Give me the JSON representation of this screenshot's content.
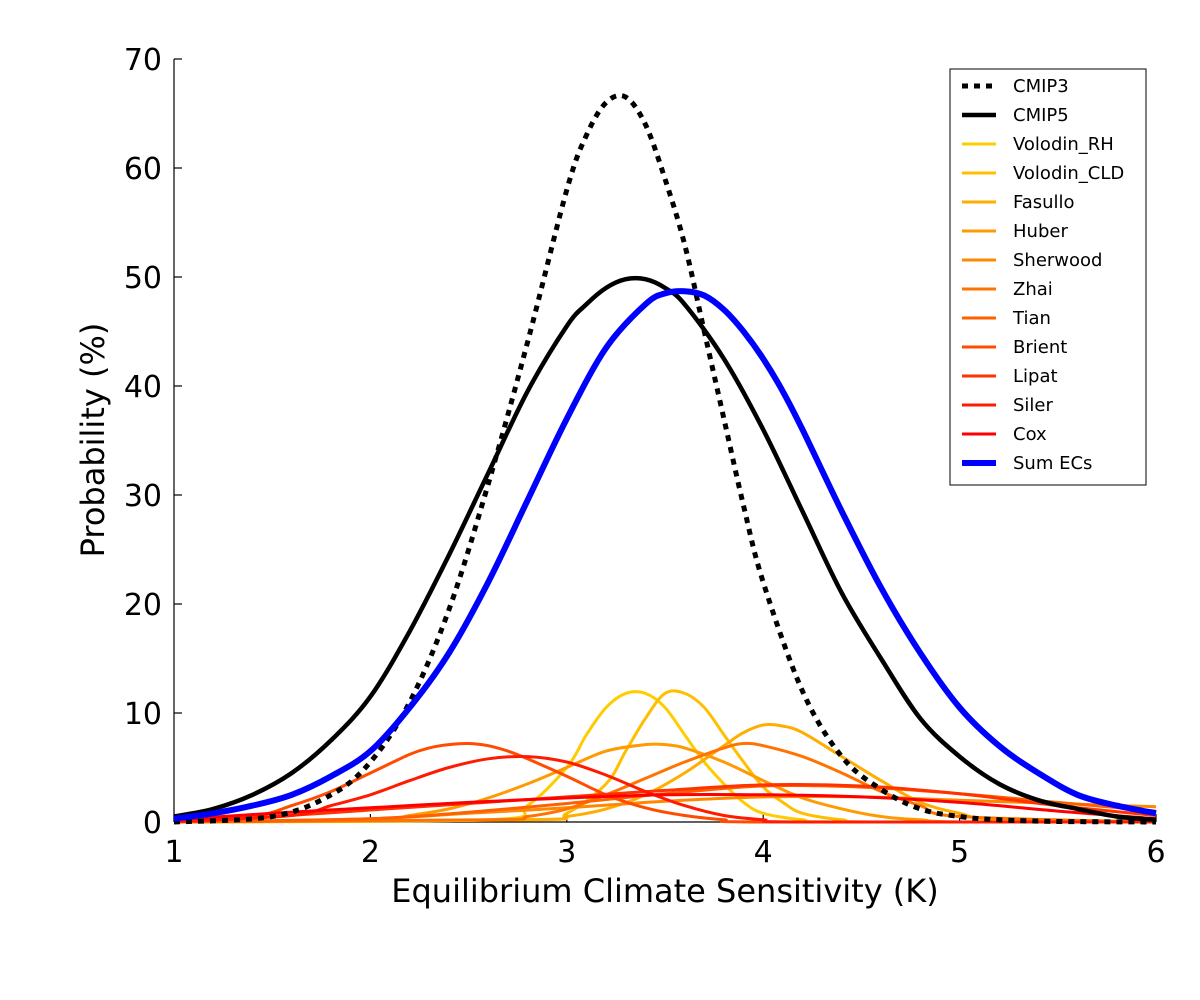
{
  "chart_data": {
    "type": "line",
    "xlabel": "Equilibrium Climate Sensitivity (K)",
    "ylabel": "Probability (%)",
    "xlim": [
      1,
      6
    ],
    "ylim": [
      0,
      70
    ],
    "xticks": [
      "1",
      "2",
      "3",
      "4",
      "5",
      "6"
    ],
    "yticks": [
      "0",
      "10",
      "20",
      "30",
      "40",
      "50",
      "60",
      "70"
    ],
    "grid": false,
    "legend_position": "top-right",
    "series": [
      {
        "name": "CMIP3",
        "color": "#000000",
        "style": "dotted",
        "x": [
          1.0,
          1.5,
          1.8,
          2.0,
          2.2,
          2.4,
          2.6,
          2.8,
          3.0,
          3.1,
          3.2,
          3.3,
          3.4,
          3.5,
          3.6,
          3.7,
          3.8,
          3.9,
          4.0,
          4.2,
          4.4,
          4.6,
          4.8,
          5.0,
          5.2,
          5.5,
          6.0
        ],
        "y": [
          0.0,
          0.5,
          2.5,
          5.5,
          11,
          19.5,
          31,
          44,
          58,
          63,
          66,
          66.5,
          64,
          59,
          53,
          45,
          37,
          29,
          22,
          12,
          6,
          3,
          1.2,
          0.5,
          0.2,
          0.05,
          0.0
        ]
      },
      {
        "name": "CMIP5",
        "color": "#000000",
        "style": "solid",
        "x": [
          1.0,
          1.2,
          1.4,
          1.6,
          1.8,
          2.0,
          2.2,
          2.4,
          2.6,
          2.8,
          3.0,
          3.1,
          3.2,
          3.3,
          3.4,
          3.5,
          3.6,
          3.8,
          4.0,
          4.2,
          4.4,
          4.6,
          4.8,
          5.0,
          5.2,
          5.4,
          5.6,
          5.8,
          6.0
        ],
        "y": [
          0.5,
          1.2,
          2.5,
          4.5,
          7.5,
          11.5,
          17.5,
          24.5,
          32,
          39.5,
          45.5,
          47.5,
          49,
          49.8,
          49.8,
          49,
          47.5,
          42.5,
          36,
          28.5,
          21,
          15,
          9.5,
          6,
          3.5,
          2,
          1.2,
          0.5,
          0.2
        ]
      },
      {
        "name": "Volodin_RH",
        "color": "#ffcc00",
        "style": "solid",
        "x": [
          1.0,
          2.6,
          2.8,
          3.0,
          3.1,
          3.2,
          3.3,
          3.4,
          3.5,
          3.6,
          3.7,
          3.8,
          3.9,
          4.0,
          4.2,
          4.4,
          6.0
        ],
        "y": [
          0.0,
          0.2,
          1.5,
          5,
          8,
          10.5,
          11.8,
          11.8,
          10.5,
          8,
          5.5,
          3.5,
          1.8,
          0.8,
          0.2,
          0.0,
          0.0
        ]
      },
      {
        "name": "Volodin_CLD",
        "color": "#ffbf00",
        "style": "solid",
        "x": [
          1.0,
          2.8,
          3.0,
          3.2,
          3.3,
          3.4,
          3.5,
          3.6,
          3.7,
          3.8,
          3.9,
          4.0,
          4.1,
          4.2,
          4.4,
          4.6,
          6.0
        ],
        "y": [
          0.0,
          0.2,
          0.8,
          3.5,
          6.5,
          9.5,
          11.8,
          11.8,
          10.5,
          8,
          5.5,
          3.2,
          1.8,
          0.8,
          0.2,
          0.0,
          0.0
        ]
      },
      {
        "name": "Fasullo",
        "color": "#ffad00",
        "style": "solid",
        "x": [
          1.0,
          2.8,
          3.0,
          3.2,
          3.4,
          3.6,
          3.8,
          3.9,
          4.0,
          4.1,
          4.2,
          4.4,
          4.6,
          4.8,
          5.0,
          5.2,
          6.0
        ],
        "y": [
          0.0,
          0.2,
          0.5,
          1.2,
          2.5,
          4.5,
          7,
          8.2,
          8.9,
          8.8,
          8.2,
          6,
          3.8,
          1.8,
          0.8,
          0.2,
          0.0
        ]
      },
      {
        "name": "Huber",
        "color": "#ff9a00",
        "style": "solid",
        "x": [
          1.0,
          2.0,
          2.2,
          2.4,
          2.6,
          2.8,
          3.0,
          3.2,
          3.4,
          3.5,
          3.6,
          3.8,
          4.0,
          4.2,
          4.4,
          4.6,
          4.8,
          5.0,
          6.0
        ],
        "y": [
          0.0,
          0.2,
          0.6,
          1.2,
          2.2,
          3.5,
          5,
          6.5,
          7.1,
          7.1,
          6.8,
          5.5,
          3.8,
          2.2,
          1.2,
          0.5,
          0.2,
          0.0,
          0.0
        ]
      },
      {
        "name": "Sherwood",
        "color": "#ff8800",
        "style": "solid",
        "x": [
          1.0,
          2.0,
          2.5,
          3.0,
          3.5,
          4.0,
          4.5,
          5.0,
          5.5,
          6.0
        ],
        "y": [
          0.0,
          0.3,
          0.8,
          1.3,
          1.9,
          2.3,
          2.3,
          2.0,
          1.7,
          1.4
        ]
      },
      {
        "name": "Zhai",
        "color": "#ff7400",
        "style": "solid",
        "x": [
          1.0,
          2.6,
          2.8,
          3.0,
          3.2,
          3.4,
          3.6,
          3.8,
          3.9,
          4.0,
          4.2,
          4.4,
          4.6,
          4.8,
          5.0,
          6.0
        ],
        "y": [
          0.0,
          0.2,
          0.5,
          1.2,
          2.5,
          4,
          5.5,
          6.8,
          7.2,
          7,
          6,
          4.5,
          2.8,
          1.5,
          0.5,
          0.0
        ]
      },
      {
        "name": "Tian",
        "color": "#ff6000",
        "style": "solid",
        "x": [
          1.0,
          2.0,
          2.5,
          3.0,
          3.5,
          4.0,
          4.5,
          5.0,
          5.5,
          6.0
        ],
        "y": [
          0.0,
          0.3,
          0.9,
          1.7,
          2.6,
          3.3,
          3.2,
          2.6,
          1.8,
          1.0
        ]
      },
      {
        "name": "Brient",
        "color": "#ff4c00",
        "style": "solid",
        "x": [
          1.0,
          1.4,
          1.6,
          1.8,
          2.0,
          2.2,
          2.3,
          2.4,
          2.5,
          2.6,
          2.7,
          2.8,
          3.0,
          3.2,
          3.4,
          3.6,
          3.8,
          4.0,
          6.0
        ],
        "y": [
          0.0,
          0.5,
          1.5,
          2.8,
          4.5,
          6.2,
          6.8,
          7.1,
          7.2,
          7.0,
          6.5,
          5.8,
          4.2,
          2.5,
          1.3,
          0.6,
          0.2,
          0.0,
          0.0
        ]
      },
      {
        "name": "Lipat",
        "color": "#ff3200",
        "style": "solid",
        "x": [
          1.0,
          1.5,
          2.0,
          2.5,
          3.0,
          3.5,
          4.0,
          4.5,
          5.0,
          5.5,
          6.0
        ],
        "y": [
          0.0,
          0.5,
          1.1,
          1.7,
          2.3,
          2.9,
          3.4,
          3.3,
          2.6,
          1.5,
          0.6
        ]
      },
      {
        "name": "Siler",
        "color": "#ff1a00",
        "style": "solid",
        "x": [
          1.0,
          1.6,
          1.8,
          2.0,
          2.2,
          2.4,
          2.6,
          2.8,
          3.0,
          3.2,
          3.4,
          3.6,
          3.8,
          4.0,
          4.2,
          6.0
        ],
        "y": [
          0.0,
          0.6,
          1.5,
          2.5,
          3.8,
          5,
          5.8,
          6.0,
          5.5,
          4.3,
          2.8,
          1.5,
          0.6,
          0.2,
          0.0,
          0.0
        ]
      },
      {
        "name": "Cox",
        "color": "#ff0000",
        "style": "solid",
        "x": [
          1.0,
          1.5,
          2.0,
          2.5,
          3.0,
          3.5,
          4.0,
          4.5,
          5.0,
          5.5,
          6.0
        ],
        "y": [
          0.2,
          0.8,
          1.3,
          1.8,
          2.2,
          2.5,
          2.5,
          2.3,
          1.8,
          1.0,
          0.3
        ]
      },
      {
        "name": "Sum ECs",
        "color": "#0000ff",
        "style": "thick",
        "x": [
          1.0,
          1.2,
          1.4,
          1.6,
          1.8,
          2.0,
          2.2,
          2.4,
          2.6,
          2.8,
          3.0,
          3.2,
          3.4,
          3.5,
          3.6,
          3.7,
          3.8,
          3.9,
          4.0,
          4.1,
          4.2,
          4.4,
          4.6,
          4.8,
          5.0,
          5.2,
          5.4,
          5.6,
          5.8,
          6.0
        ],
        "y": [
          0.3,
          0.8,
          1.5,
          2.5,
          4.2,
          6.5,
          10.5,
          15.5,
          22,
          29.5,
          37,
          43.5,
          47.5,
          48.5,
          48.7,
          48.3,
          47,
          45,
          42.5,
          39.5,
          36,
          28.5,
          21.5,
          15.5,
          10.5,
          7,
          4.5,
          2.5,
          1.5,
          0.8
        ]
      }
    ]
  }
}
